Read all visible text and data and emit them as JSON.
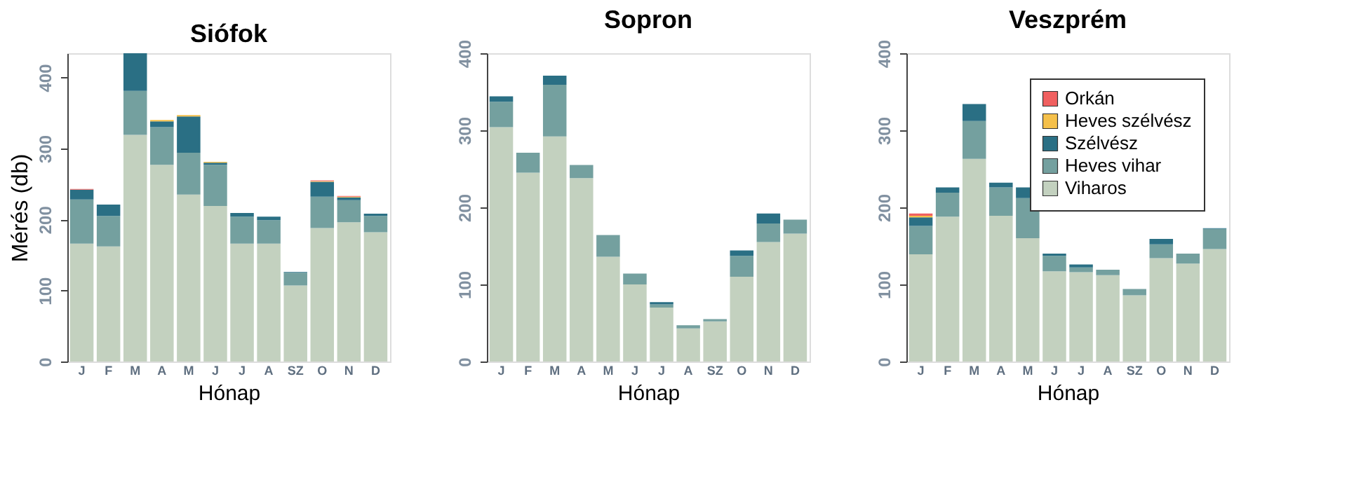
{
  "chart_data": [
    {
      "type": "bar",
      "stacked": true,
      "title": "Siófok",
      "xlabel": "Hónap",
      "ylabel": "Mérés (db)",
      "categories": [
        "J",
        "F",
        "M",
        "A",
        "M",
        "J",
        "J",
        "A",
        "SZ",
        "O",
        "N",
        "D"
      ],
      "ylim": [
        0,
        434
      ],
      "yticks": [
        0,
        100,
        200,
        300,
        400
      ],
      "grid": false,
      "legend": false,
      "series": [
        {
          "color": "#c3d1bf",
          "values": [
            166,
            162,
            319,
            277,
            235,
            219,
            166,
            166,
            107,
            188,
            196,
            182
          ]
        },
        {
          "color": "#74a09f",
          "values": [
            62,
            43,
            62,
            53,
            59,
            58,
            38,
            33,
            18,
            44,
            31,
            23
          ]
        },
        {
          "color": "#2a6f84",
          "values": [
            14,
            16,
            53,
            8,
            51,
            3,
            5,
            5,
            1,
            21,
            4,
            3
          ]
        },
        {
          "color": "#f5c04a",
          "values": [
            null,
            null,
            null,
            2,
            2,
            1,
            null,
            null,
            null,
            1,
            1,
            null
          ]
        },
        {
          "color": "#f06060",
          "values": [
            1,
            null,
            null,
            null,
            null,
            null,
            null,
            null,
            null,
            1,
            1,
            null
          ]
        }
      ]
    },
    {
      "type": "bar",
      "stacked": true,
      "title": "Sopron",
      "xlabel": "Hónap",
      "categories": [
        "J",
        "F",
        "M",
        "A",
        "M",
        "J",
        "J",
        "A",
        "SZ",
        "O",
        "N",
        "D"
      ],
      "ylim": [
        0,
        400
      ],
      "yticks": [
        0,
        100,
        200,
        300,
        400
      ],
      "grid": false,
      "legend": false,
      "series": [
        {
          "color": "#c3d1bf",
          "values": [
            304,
            245,
            292,
            238,
            136,
            100,
            70,
            43,
            52,
            110,
            155,
            166
          ]
        },
        {
          "color": "#74a09f",
          "values": [
            33,
            26,
            67,
            17,
            28,
            14,
            4,
            4,
            3,
            27,
            24,
            18
          ]
        },
        {
          "color": "#2a6f84",
          "values": [
            7,
            null,
            12,
            null,
            null,
            null,
            3,
            null,
            null,
            7,
            13,
            null
          ]
        }
      ]
    },
    {
      "type": "bar",
      "stacked": true,
      "title": "Veszprém",
      "xlabel": "Hónap",
      "categories": [
        "J",
        "F",
        "M",
        "A",
        "M",
        "J",
        "J",
        "A",
        "SZ",
        "O",
        "N",
        "D"
      ],
      "ylim": [
        0,
        400
      ],
      "yticks": [
        0,
        100,
        200,
        300,
        400
      ],
      "grid": false,
      "legend": "top right",
      "series": [
        {
          "name": "Viharos",
          "color": "#c3d1bf",
          "values": [
            139,
            188,
            263,
            189,
            160,
            117,
            116,
            112,
            86,
            134,
            127,
            146
          ]
        },
        {
          "name": "Heves vihar",
          "color": "#74a09f",
          "values": [
            37,
            31,
            49,
            37,
            52,
            20,
            6,
            7,
            8,
            18,
            13,
            26
          ]
        },
        {
          "name": "Szélvész",
          "color": "#2a6f84",
          "values": [
            11,
            7,
            22,
            6,
            14,
            3,
            4,
            null,
            null,
            7,
            null,
            1
          ]
        },
        {
          "name": "Heves szélvész",
          "color": "#f5c04a",
          "values": [
            2,
            null,
            null,
            null,
            null,
            null,
            null,
            null,
            null,
            null,
            null,
            null
          ]
        },
        {
          "name": "Orkán",
          "color": "#f06060",
          "values": [
            3,
            null,
            null,
            null,
            null,
            null,
            null,
            null,
            null,
            null,
            null,
            null
          ]
        }
      ]
    }
  ]
}
